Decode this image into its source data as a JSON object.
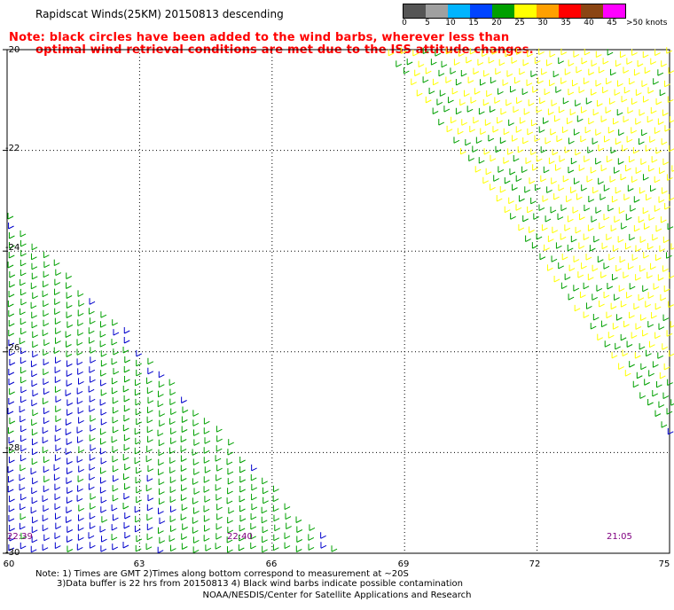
{
  "header": {
    "title": "Rapidscat Winds(25KM) 20150813 descending",
    "note_line1": "Note: black circles have been added to the wind barbs, wherever less than",
    "note_line2": "optimal wind retrieval conditions are met due to the ISS attitude changes."
  },
  "legend": {
    "labels": [
      "0",
      "5",
      "10",
      "15",
      "20",
      "25",
      "30",
      "35",
      "40",
      "45",
      ">50 knots"
    ],
    "colors": [
      "#555555",
      "#a0a0a0",
      "#00b4ff",
      "#0044ff",
      "#00a000",
      "#ffff00",
      "#ffa000",
      "#ff0000",
      "#8b4513",
      "#ff00ff",
      "#8000a0"
    ]
  },
  "axes": {
    "lat_labels": [
      "-20",
      "-22",
      "-24",
      "-26",
      "-28",
      "-30"
    ],
    "lat_values": [
      -20,
      -22,
      -24,
      -26,
      -28,
      -30
    ],
    "lon_labels": [
      "60",
      "63",
      "66",
      "69",
      "72",
      "75"
    ],
    "lon_values": [
      60,
      63,
      66,
      69,
      72,
      75
    ],
    "lat_range": [
      -30,
      -20
    ],
    "lon_range": [
      60,
      75
    ]
  },
  "timestamps": {
    "t1": "22:39",
    "t2": "22:40",
    "t3": "21:05"
  },
  "footer": {
    "note_line1": "Note: 1) Times are GMT 2)Times along bottom correspond to measurement at ~20S",
    "note_line2": "3)Data buffer is 22 hrs from 20150813 4) Black wind barbs indicate possible contamination",
    "credit": "NOAA/NESDIS/Center for Satellite Applications and Research"
  },
  "wind_colors": {
    "light": "#ffff00",
    "moderate": "#00a000",
    "calm": "#0000cc"
  }
}
